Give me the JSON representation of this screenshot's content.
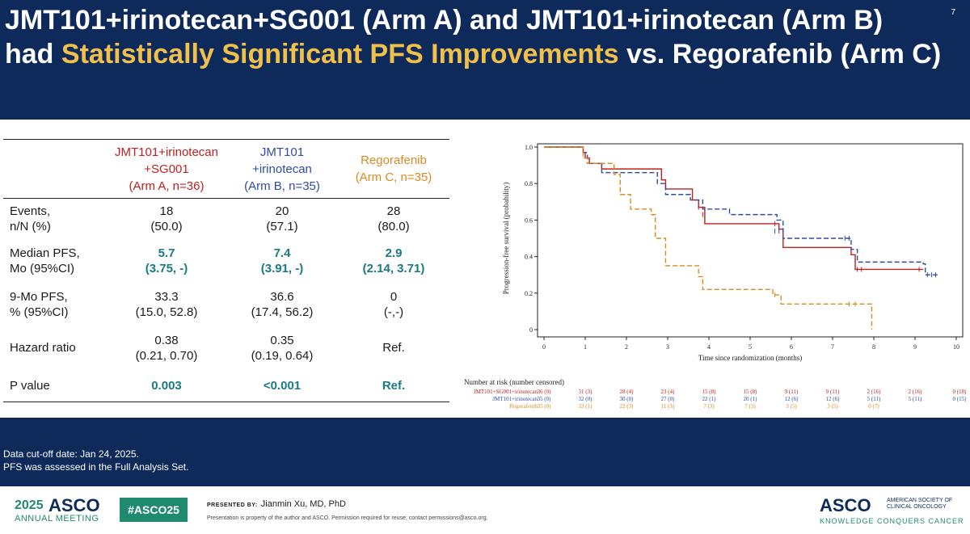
{
  "slide": {
    "page_number": "7",
    "title_line1": "JMT101+irinotecan+SG001 (Arm A) and JMT101+irinotecan (Arm B)",
    "title_line2_pre": "had ",
    "title_line2_highlight": "Statistically Significant PFS Improvements",
    "title_line2_post": " vs. Regorafenib (Arm C)"
  },
  "table": {
    "headers": {
      "armA": [
        "JMT101+irinotecan",
        "+SG001",
        "(Arm A, n=36)"
      ],
      "armB": [
        "JMT101",
        "+irinotecan",
        "(Arm B, n=35)"
      ],
      "armC": [
        "Regorafenib",
        "(Arm C, n=35)"
      ]
    },
    "rows": [
      {
        "label": [
          "Events,",
          "n/N (%)"
        ],
        "a": [
          "18",
          "(50.0)"
        ],
        "b": [
          "20",
          "(57.1)"
        ],
        "c": [
          "28",
          "(80.0)"
        ]
      },
      {
        "label": [
          "Median PFS,",
          "Mo (95%CI)"
        ],
        "a": [
          "5.7",
          "(3.75, -)"
        ],
        "b": [
          "7.4",
          "(3.91, -)"
        ],
        "c": [
          "2.9",
          "(2.14, 3.71)"
        ]
      },
      {
        "label": [
          "9-Mo PFS,",
          "% (95%CI)"
        ],
        "a": [
          "33.3",
          "(15.0, 52.8)"
        ],
        "b": [
          "36.6",
          "(17.4, 56.2)"
        ],
        "c": [
          "0",
          "(-,-)"
        ]
      },
      {
        "label": [
          "Hazard ratio"
        ],
        "a": [
          "0.38",
          "(0.21, 0.70)"
        ],
        "b": [
          "0.35",
          "(0.19, 0.64)"
        ],
        "c": [
          "Ref."
        ]
      },
      {
        "label": [
          "P value"
        ],
        "a": [
          "0.003"
        ],
        "b": [
          "<0.001"
        ],
        "c": [
          "Ref."
        ]
      }
    ]
  },
  "chart_data": {
    "type": "line",
    "subtype": "kaplan-meier",
    "xlabel": "Time since randomization (months)",
    "ylabel": "Progression-free survival (probability)",
    "xlim": [
      0,
      10
    ],
    "ylim": [
      0,
      1.0
    ],
    "x_ticks": [
      0,
      1,
      2,
      3,
      4,
      5,
      6,
      7,
      8,
      9,
      10
    ],
    "y_ticks": [
      0,
      0.2,
      0.4,
      0.6,
      0.8,
      1.0
    ],
    "y_tick_labels": [
      "0",
      "0.2",
      "0.4",
      "0.6",
      "0.8",
      "1.0"
    ],
    "series": [
      {
        "name": "JMT101+SG001+irinotecan",
        "color": "#c0201f",
        "style": "solid",
        "steps": [
          [
            0,
            1.0
          ],
          [
            0.95,
            0.97
          ],
          [
            1.0,
            0.94
          ],
          [
            1.1,
            0.91
          ],
          [
            1.4,
            0.88
          ],
          [
            2.85,
            0.82
          ],
          [
            2.95,
            0.77
          ],
          [
            3.6,
            0.71
          ],
          [
            3.75,
            0.67
          ],
          [
            3.9,
            0.58
          ],
          [
            5.7,
            0.55
          ],
          [
            5.8,
            0.45
          ],
          [
            7.45,
            0.41
          ],
          [
            7.55,
            0.33
          ],
          [
            9.2,
            0.33
          ]
        ],
        "censor": [
          [
            3.75,
            0.67
          ],
          [
            3.85,
            0.63
          ],
          [
            5.6,
            0.58
          ],
          [
            7.6,
            0.33
          ],
          [
            7.7,
            0.33
          ],
          [
            9.1,
            0.33
          ]
        ]
      },
      {
        "name": "JMT101+irinotecan",
        "color": "#2f4c9e",
        "style": "dashed",
        "steps": [
          [
            0,
            1.0
          ],
          [
            0.95,
            0.97
          ],
          [
            1.05,
            0.91
          ],
          [
            1.4,
            0.86
          ],
          [
            2.75,
            0.8
          ],
          [
            2.95,
            0.74
          ],
          [
            3.55,
            0.71
          ],
          [
            3.85,
            0.66
          ],
          [
            4.5,
            0.63
          ],
          [
            5.65,
            0.6
          ],
          [
            5.8,
            0.5
          ],
          [
            7.35,
            0.5
          ],
          [
            7.45,
            0.44
          ],
          [
            7.6,
            0.37
          ],
          [
            9.2,
            0.36
          ],
          [
            9.25,
            0.3
          ],
          [
            9.55,
            0.3
          ]
        ],
        "censor": [
          [
            5.6,
            0.54
          ],
          [
            5.7,
            0.54
          ],
          [
            7.3,
            0.5
          ],
          [
            7.4,
            0.5
          ],
          [
            9.3,
            0.3
          ],
          [
            9.4,
            0.3
          ],
          [
            9.5,
            0.3
          ]
        ]
      },
      {
        "name": "Regorafenib",
        "color": "#d98b22",
        "style": "dashed",
        "steps": [
          [
            0,
            1.0
          ],
          [
            0.95,
            0.94
          ],
          [
            1.05,
            0.91
          ],
          [
            1.7,
            0.85
          ],
          [
            1.85,
            0.74
          ],
          [
            2.1,
            0.66
          ],
          [
            2.6,
            0.63
          ],
          [
            2.7,
            0.5
          ],
          [
            2.95,
            0.35
          ],
          [
            3.75,
            0.29
          ],
          [
            3.85,
            0.22
          ],
          [
            5.55,
            0.19
          ],
          [
            5.75,
            0.14
          ],
          [
            7.95,
            0.14
          ],
          [
            7.95,
            0.0
          ]
        ],
        "censor": [
          [
            5.6,
            0.19
          ],
          [
            7.4,
            0.14
          ],
          [
            7.55,
            0.14
          ]
        ]
      }
    ],
    "risk_table": {
      "title": "Number at risk (number censored)",
      "times": [
        0,
        1,
        2,
        3,
        4,
        5,
        6,
        7,
        8,
        9,
        10
      ],
      "rows": [
        {
          "label": "JMT101+SG001+irinotecan",
          "color": "#c0201f",
          "values": [
            "36 (0)",
            "31 (3)",
            "28 (4)",
            "23 (4)",
            "15 (8)",
            "15 (8)",
            "9 (11)",
            "9 (11)",
            "2 (16)",
            "2 (16)",
            "0 (18)"
          ]
        },
        {
          "label": "JMT101+irinotecan",
          "color": "#2f4c9e",
          "values": [
            "35 (0)",
            "32 (0)",
            "30 (0)",
            "27 (0)",
            "22 (1)",
            "20 (1)",
            "12 (6)",
            "12 (6)",
            "5 (11)",
            "5 (11)",
            "0 (15)"
          ]
        },
        {
          "label": "Regorafenib",
          "color": "#d98b22",
          "values": [
            "35 (0)",
            "33 (1)",
            "22 (3)",
            "11 (3)",
            "7 (3)",
            "7 (3)",
            "3 (5)",
            "3 (5)",
            "0 (7)",
            "",
            ""
          ]
        }
      ]
    }
  },
  "footnotes": [
    "Data cut-off date: Jan 24, 2025.",
    "PFS was assessed in the Full Analysis Set."
  ],
  "footer": {
    "meeting_year": "2025",
    "meeting_org": "ASCO",
    "meeting_name": "ANNUAL MEETING",
    "hashtag": "#ASCO25",
    "presented_by_label": "PRESENTED BY:",
    "presenter": "Jianmin Xu, MD, PhD",
    "disclaimer": "Presentation is property of the author and ASCO. Permission required for reuse; contact permissions@asco.org.",
    "brand": "ASCO",
    "brand_sub": "AMERICAN SOCIETY OF CLINICAL ONCOLOGY",
    "brand_tag": "KNOWLEDGE CONQUERS CANCER"
  }
}
